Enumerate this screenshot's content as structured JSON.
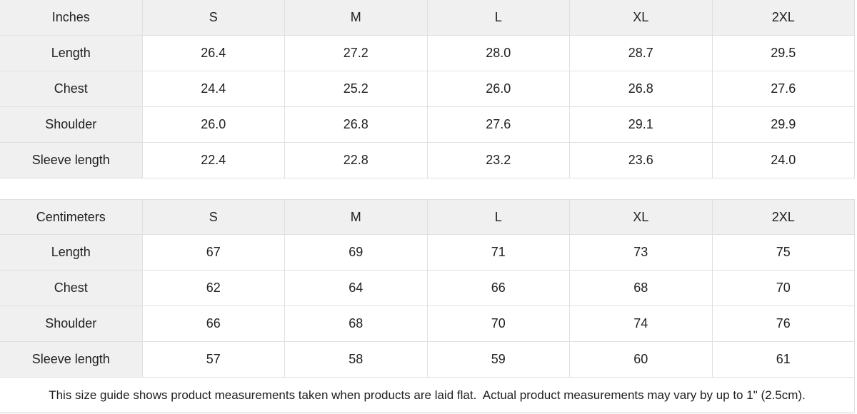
{
  "colors": {
    "header_bg": "#f0f0f0",
    "row_label_bg": "#f0f0f0",
    "cell_bg": "#ffffff",
    "border": "#e0e0e0",
    "text": "#212121"
  },
  "tables": [
    {
      "unit_label": "Inches",
      "size_headers": [
        "S",
        "M",
        "L",
        "XL",
        "2XL"
      ],
      "rows": [
        {
          "label": "Length",
          "values": [
            "26.4",
            "27.2",
            "28.0",
            "28.7",
            "29.5"
          ]
        },
        {
          "label": "Chest",
          "values": [
            "24.4",
            "25.2",
            "26.0",
            "26.8",
            "27.6"
          ]
        },
        {
          "label": "Shoulder",
          "values": [
            "26.0",
            "26.8",
            "27.6",
            "29.1",
            "29.9"
          ]
        },
        {
          "label": "Sleeve length",
          "values": [
            "22.4",
            "22.8",
            "23.2",
            "23.6",
            "24.0"
          ]
        }
      ]
    },
    {
      "unit_label": "Centimeters",
      "size_headers": [
        "S",
        "M",
        "L",
        "XL",
        "2XL"
      ],
      "rows": [
        {
          "label": "Length",
          "values": [
            "67",
            "69",
            "71",
            "73",
            "75"
          ]
        },
        {
          "label": "Chest",
          "values": [
            "62",
            "64",
            "66",
            "68",
            "70"
          ]
        },
        {
          "label": "Shoulder",
          "values": [
            "66",
            "68",
            "70",
            "74",
            "76"
          ]
        },
        {
          "label": "Sleeve length",
          "values": [
            "57",
            "58",
            "59",
            "60",
            "61"
          ]
        }
      ]
    }
  ],
  "footer": {
    "note": "This size guide shows product measurements taken when products are laid flat.  Actual product measurements may vary by up to 1\" (2.5cm)."
  }
}
